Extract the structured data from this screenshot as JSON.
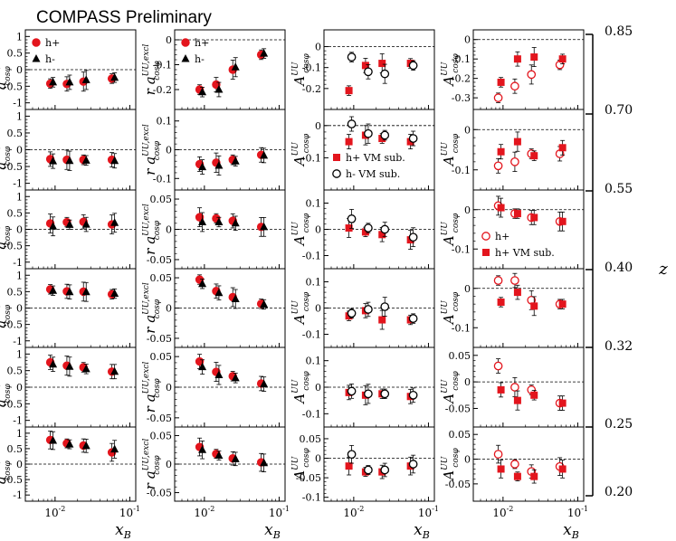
{
  "header": {
    "title": "COMPASS Preliminary"
  },
  "z_axis": {
    "label": "z",
    "edges": [
      "0.85",
      "0.70",
      "0.55",
      "0.40",
      "0.32",
      "0.25",
      "0.20"
    ]
  },
  "x_label": "x",
  "x_label_sub": "B",
  "x_tick_label": "10",
  "x_tick_exp": [
    "-2",
    "-1"
  ],
  "colors": {
    "red": "#e3151d",
    "black": "#000000"
  },
  "chart_data": [
    {
      "type": "scatter",
      "column": 1,
      "ylabel": "a",
      "ylabel_sup": "UU,excl",
      "ylabel_sub": "cosφ",
      "ylim": [
        -1.2,
        1.2
      ],
      "yticks": [
        "-1",
        "-0.5",
        "0",
        "0.5",
        "1"
      ],
      "ytick_values": [
        -1,
        -0.5,
        0,
        0.5,
        1
      ],
      "x": [
        0.009,
        0.015,
        0.025,
        0.06
      ],
      "legend": {
        "items": [
          "h+",
          "h-"
        ]
      },
      "series": [
        {
          "name": "h+",
          "marker": "circle-red",
          "rows": [
            [
              -0.42,
              -0.43,
              -0.36,
              -0.27
            ],
            [
              -0.28,
              -0.3,
              -0.3,
              -0.3
            ],
            [
              0.18,
              0.22,
              0.23,
              0.15
            ],
            [
              0.57,
              0.51,
              0.5,
              0.42
            ],
            [
              0.75,
              0.65,
              0.6,
              0.47
            ],
            [
              0.78,
              0.67,
              0.6,
              0.38
            ]
          ]
        },
        {
          "name": "h-",
          "marker": "triangle-black",
          "rows": [
            [
              -0.38,
              -0.38,
              -0.31,
              -0.24
            ],
            [
              -0.34,
              -0.33,
              -0.32,
              -0.33
            ],
            [
              0.09,
              0.14,
              0.15,
              0.2
            ],
            [
              0.53,
              0.49,
              0.49,
              0.44
            ],
            [
              0.69,
              0.62,
              0.55,
              0.47
            ],
            [
              0.76,
              0.64,
              0.59,
              0.48
            ]
          ]
        }
      ]
    },
    {
      "type": "scatter",
      "column": 2,
      "ylabel_prefix": "r a",
      "ylabel_sup": "UU,excl",
      "ylabel_sub": "cosφ",
      "x": [
        0.009,
        0.015,
        0.025,
        0.06
      ],
      "legend": {
        "items": [
          "h+",
          "h-"
        ]
      },
      "rows": [
        {
          "ylim": [
            -0.28,
            0.04
          ],
          "yticks": [
            "-0.2",
            "-0.1",
            "0"
          ],
          "ytick_values": [
            -0.2,
            -0.1,
            0
          ]
        },
        {
          "ylim": [
            -0.14,
            0.14
          ],
          "yticks": [
            "-0.1",
            "0",
            "0.1"
          ],
          "ytick_values": [
            -0.1,
            0,
            0.1
          ]
        },
        {
          "ylim": [
            -0.065,
            0.065
          ],
          "yticks": [
            "-0.05",
            "0",
            "0.05"
          ],
          "ytick_values": [
            -0.05,
            0,
            0.05
          ]
        },
        {
          "ylim": [
            -0.065,
            0.065
          ],
          "yticks": [
            "-0.05",
            "0",
            "0.05"
          ],
          "ytick_values": [
            -0.05,
            0,
            0.05
          ]
        },
        {
          "ylim": [
            -0.065,
            0.065
          ],
          "yticks": [
            "-0.05",
            "0",
            "0.05"
          ],
          "ytick_values": [
            -0.05,
            0,
            0.05
          ]
        },
        {
          "ylim": [
            -0.065,
            0.065
          ],
          "yticks": [
            "-0.05",
            "0",
            "0.05"
          ],
          "ytick_values": [
            -0.05,
            0,
            0.05
          ]
        }
      ],
      "series": [
        {
          "name": "h+",
          "marker": "circle-red",
          "rows": [
            [
              -0.2,
              -0.18,
              -0.12,
              -0.06
            ],
            [
              -0.05,
              -0.045,
              -0.035,
              -0.018
            ],
            [
              0.02,
              0.018,
              0.014,
              0.004
            ],
            [
              0.047,
              0.028,
              0.018,
              0.007
            ],
            [
              0.042,
              0.025,
              0.018,
              0.006
            ],
            [
              0.03,
              0.018,
              0.01,
              0.003
            ]
          ]
        },
        {
          "name": "h-",
          "marker": "triangle-black",
          "rows": [
            [
              -0.21,
              -0.2,
              -0.11,
              -0.055
            ],
            [
              -0.06,
              -0.055,
              -0.04,
              -0.02
            ],
            [
              0.012,
              0.012,
              0.01,
              0.004
            ],
            [
              0.04,
              0.025,
              0.015,
              0.006
            ],
            [
              0.033,
              0.02,
              0.015,
              0.005
            ],
            [
              0.025,
              0.015,
              0.009,
              0.002
            ]
          ]
        }
      ]
    },
    {
      "type": "scatter",
      "column": 3,
      "ylabel": "A",
      "ylabel_sup": "UU",
      "ylabel_sub": "cosφ",
      "x": [
        0.009,
        0.015,
        0.025,
        0.06
      ],
      "legend": {
        "row": 1,
        "items": [
          "h+ VM sub.",
          "h- VM sub."
        ]
      },
      "rows": [
        {
          "ylim": [
            -0.3,
            0.08
          ],
          "yticks": [
            "-0.2",
            "-0.1",
            "0"
          ],
          "ytick_values": [
            -0.2,
            -0.1,
            0
          ]
        },
        {
          "ylim": [
            -0.2,
            0.05
          ],
          "yticks": [
            "-0.1",
            "0"
          ],
          "ytick_values": [
            -0.1,
            0
          ]
        },
        {
          "ylim": [
            -0.15,
            0.15
          ],
          "yticks": [
            "-0.1",
            "0",
            "0.1"
          ],
          "ytick_values": [
            -0.1,
            0,
            0.1
          ]
        },
        {
          "ylim": [
            -0.15,
            0.15
          ],
          "yticks": [
            "-0.1",
            "0",
            "0.1"
          ],
          "ytick_values": [
            -0.1,
            0,
            0.1
          ]
        },
        {
          "ylim": [
            -0.15,
            0.15
          ],
          "yticks": [
            "-0.1",
            "0",
            "0.1"
          ],
          "ytick_values": [
            -0.1,
            0,
            0.1
          ]
        },
        {
          "ylim": [
            -0.11,
            0.08
          ],
          "yticks": [
            "-0.1",
            "-0.05",
            "0",
            "0.05"
          ],
          "ytick_values": [
            -0.1,
            -0.05,
            0,
            0.05
          ]
        }
      ],
      "series": [
        {
          "name": "h+ VM sub.",
          "marker": "square-red",
          "rows": [
            [
              -0.21,
              -0.09,
              -0.08,
              -0.08
            ],
            [
              -0.05,
              -0.03,
              -0.04,
              -0.05
            ],
            [
              0.005,
              -0.01,
              -0.02,
              -0.04
            ],
            [
              -0.03,
              -0.01,
              -0.045,
              -0.045
            ],
            [
              -0.02,
              -0.03,
              -0.025,
              -0.035
            ],
            [
              -0.02,
              -0.035,
              -0.035,
              -0.02
            ]
          ]
        },
        {
          "name": "h- VM sub.",
          "marker": "circle-open-black",
          "rows": [
            [
              -0.05,
              -0.12,
              -0.13,
              -0.09
            ],
            [
              0.005,
              -0.025,
              -0.03,
              -0.04
            ],
            [
              0.04,
              0.005,
              0.0,
              -0.03
            ],
            [
              -0.02,
              -0.005,
              0.005,
              -0.04
            ],
            [
              -0.015,
              -0.025,
              -0.025,
              -0.03
            ],
            [
              0.01,
              -0.03,
              -0.03,
              -0.015
            ]
          ]
        }
      ]
    },
    {
      "type": "scatter",
      "column": 4,
      "ylabel": "A",
      "ylabel_sup": "UU",
      "ylabel_sub": "cosφ",
      "x": [
        0.009,
        0.015,
        0.025,
        0.06
      ],
      "legend": {
        "row": 2,
        "items": [
          "h+",
          "h+ VM sub."
        ]
      },
      "rows": [
        {
          "ylim": [
            -0.36,
            0.05
          ],
          "yticks": [
            "-0.3",
            "-0.2",
            "-0.1",
            "0"
          ],
          "ytick_values": [
            -0.3,
            -0.2,
            -0.1,
            0
          ]
        },
        {
          "ylim": [
            -0.15,
            0.05
          ],
          "yticks": [
            "-0.1",
            "0"
          ],
          "ytick_values": [
            -0.1,
            0
          ]
        },
        {
          "ylim": [
            -0.15,
            0.05
          ],
          "yticks": [
            "-0.1",
            "0"
          ],
          "ytick_values": [
            -0.1,
            0
          ]
        },
        {
          "ylim": [
            -0.15,
            0.05
          ],
          "yticks": [
            "-0.1",
            "0"
          ],
          "ytick_values": [
            -0.1,
            0
          ]
        },
        {
          "ylim": [
            -0.085,
            0.065
          ],
          "yticks": [
            "-0.05",
            "0",
            "0.05"
          ],
          "ytick_values": [
            -0.05,
            0,
            0.05
          ]
        },
        {
          "ylim": [
            -0.085,
            0.065
          ],
          "yticks": [
            "-0.05",
            "0",
            "0.05"
          ],
          "ytick_values": [
            -0.05,
            0,
            0.05
          ]
        }
      ],
      "series": [
        {
          "name": "h+",
          "marker": "circle-open-red",
          "rows": [
            [
              -0.3,
              -0.24,
              -0.18,
              -0.13
            ],
            [
              -0.09,
              -0.08,
              -0.06,
              -0.06
            ],
            [
              0.01,
              -0.01,
              -0.02,
              -0.03
            ],
            [
              0.02,
              0.02,
              -0.03,
              -0.04
            ],
            [
              0.03,
              -0.01,
              -0.015,
              -0.04
            ],
            [
              0.01,
              -0.01,
              -0.025,
              -0.015
            ]
          ]
        },
        {
          "name": "h+ VM sub.",
          "marker": "square-red",
          "rows": [
            [
              -0.22,
              -0.1,
              -0.09,
              -0.1
            ],
            [
              -0.055,
              -0.03,
              -0.065,
              -0.045
            ],
            [
              0.005,
              -0.01,
              -0.02,
              -0.03
            ],
            [
              -0.035,
              -0.01,
              -0.045,
              -0.04
            ],
            [
              -0.015,
              -0.035,
              -0.025,
              -0.04
            ],
            [
              -0.02,
              -0.035,
              -0.035,
              -0.02
            ]
          ]
        }
      ]
    }
  ]
}
